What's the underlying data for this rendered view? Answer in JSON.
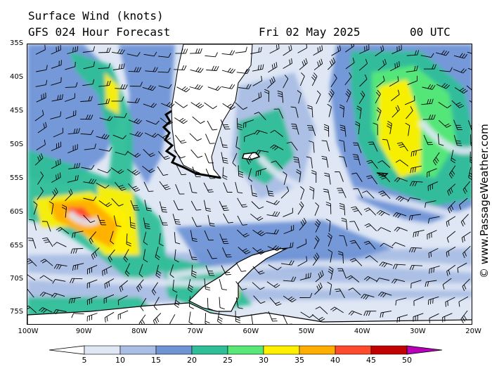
{
  "header": {
    "title": "Surface Wind (knots)",
    "model": "GFS 024 Hour Forecast",
    "date": "Fri 02 May 2025",
    "time": "00 UTC"
  },
  "credit": "© www.PassageWeather.com",
  "axes": {
    "lat_labels": [
      "35S",
      "40S",
      "45S",
      "50S",
      "55S",
      "60S",
      "65S",
      "70S",
      "75S"
    ],
    "lon_labels": [
      "100W",
      "90W",
      "80W",
      "70W",
      "60W",
      "50W",
      "40W",
      "30W",
      "20W"
    ]
  },
  "legend": {
    "ticks": [
      "5",
      "10",
      "15",
      "20",
      "25",
      "30",
      "35",
      "40",
      "45",
      "50"
    ],
    "colors": [
      "#ffffff",
      "#dfe7f5",
      "#a9bee4",
      "#6f94d6",
      "#2fbf98",
      "#57e878",
      "#fff000",
      "#ffae00",
      "#ff4a2e",
      "#c20000",
      "#b800b8"
    ]
  },
  "map_colors": {
    "ocean_base": "#dfe7f5",
    "land": "#ffffff",
    "coast": "#000000"
  }
}
